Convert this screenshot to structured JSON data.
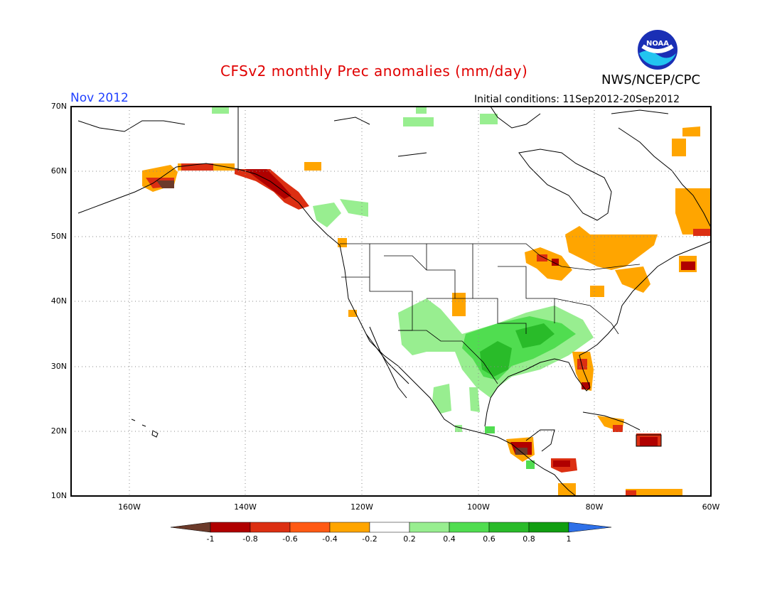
{
  "header": {
    "title": "CFSv2 monthly Prec anomalies (mm/day)",
    "month": "Nov 2012",
    "initial_conditions": "Initial conditions: 11Sep2012-20Sep2012",
    "agency": "NWS/NCEP/CPC",
    "logo_text": "NOAA"
  },
  "map": {
    "lat_labels": [
      "70N",
      "60N",
      "50N",
      "40N",
      "30N",
      "20N",
      "10N"
    ],
    "lon_labels": [
      "160W",
      "140W",
      "120W",
      "100W",
      "80W",
      "60W"
    ],
    "grid": "dotted",
    "extent": {
      "lon": [
        -170,
        -60
      ],
      "lat": [
        10,
        70
      ]
    }
  },
  "colorbar": {
    "labels": [
      "-1",
      "-0.8",
      "-0.6",
      "-0.4",
      "-0.2",
      "0.2",
      "0.4",
      "0.6",
      "0.8",
      "1"
    ],
    "colors": [
      "#6b3a2a",
      "#b00000",
      "#dc2f12",
      "#ff5a14",
      "#ffa500",
      "#ffffff",
      "#98ee90",
      "#50dd50",
      "#29bb29",
      "#119e11",
      "#2e70e8"
    ]
  },
  "anomaly_patches": [
    {
      "region": "Central US / Texas",
      "sign": "wet",
      "color": "#50dd50"
    },
    {
      "region": "Lower Mississippi Valley",
      "sign": "wet",
      "color": "#29bb29"
    },
    {
      "region": "Mexico Sierra Madre",
      "sign": "wet",
      "color": "#98ee90"
    },
    {
      "region": "Great Lakes / Quebec",
      "sign": "dry",
      "color": "#ffa500"
    },
    {
      "region": "Alaska / BC coast",
      "sign": "dry",
      "color": "#b00000"
    },
    {
      "region": "Florida",
      "sign": "dry",
      "color": "#ff5a14"
    },
    {
      "region": "Caribbean / Central America",
      "sign": "dry",
      "color": "#b00000"
    }
  ]
}
